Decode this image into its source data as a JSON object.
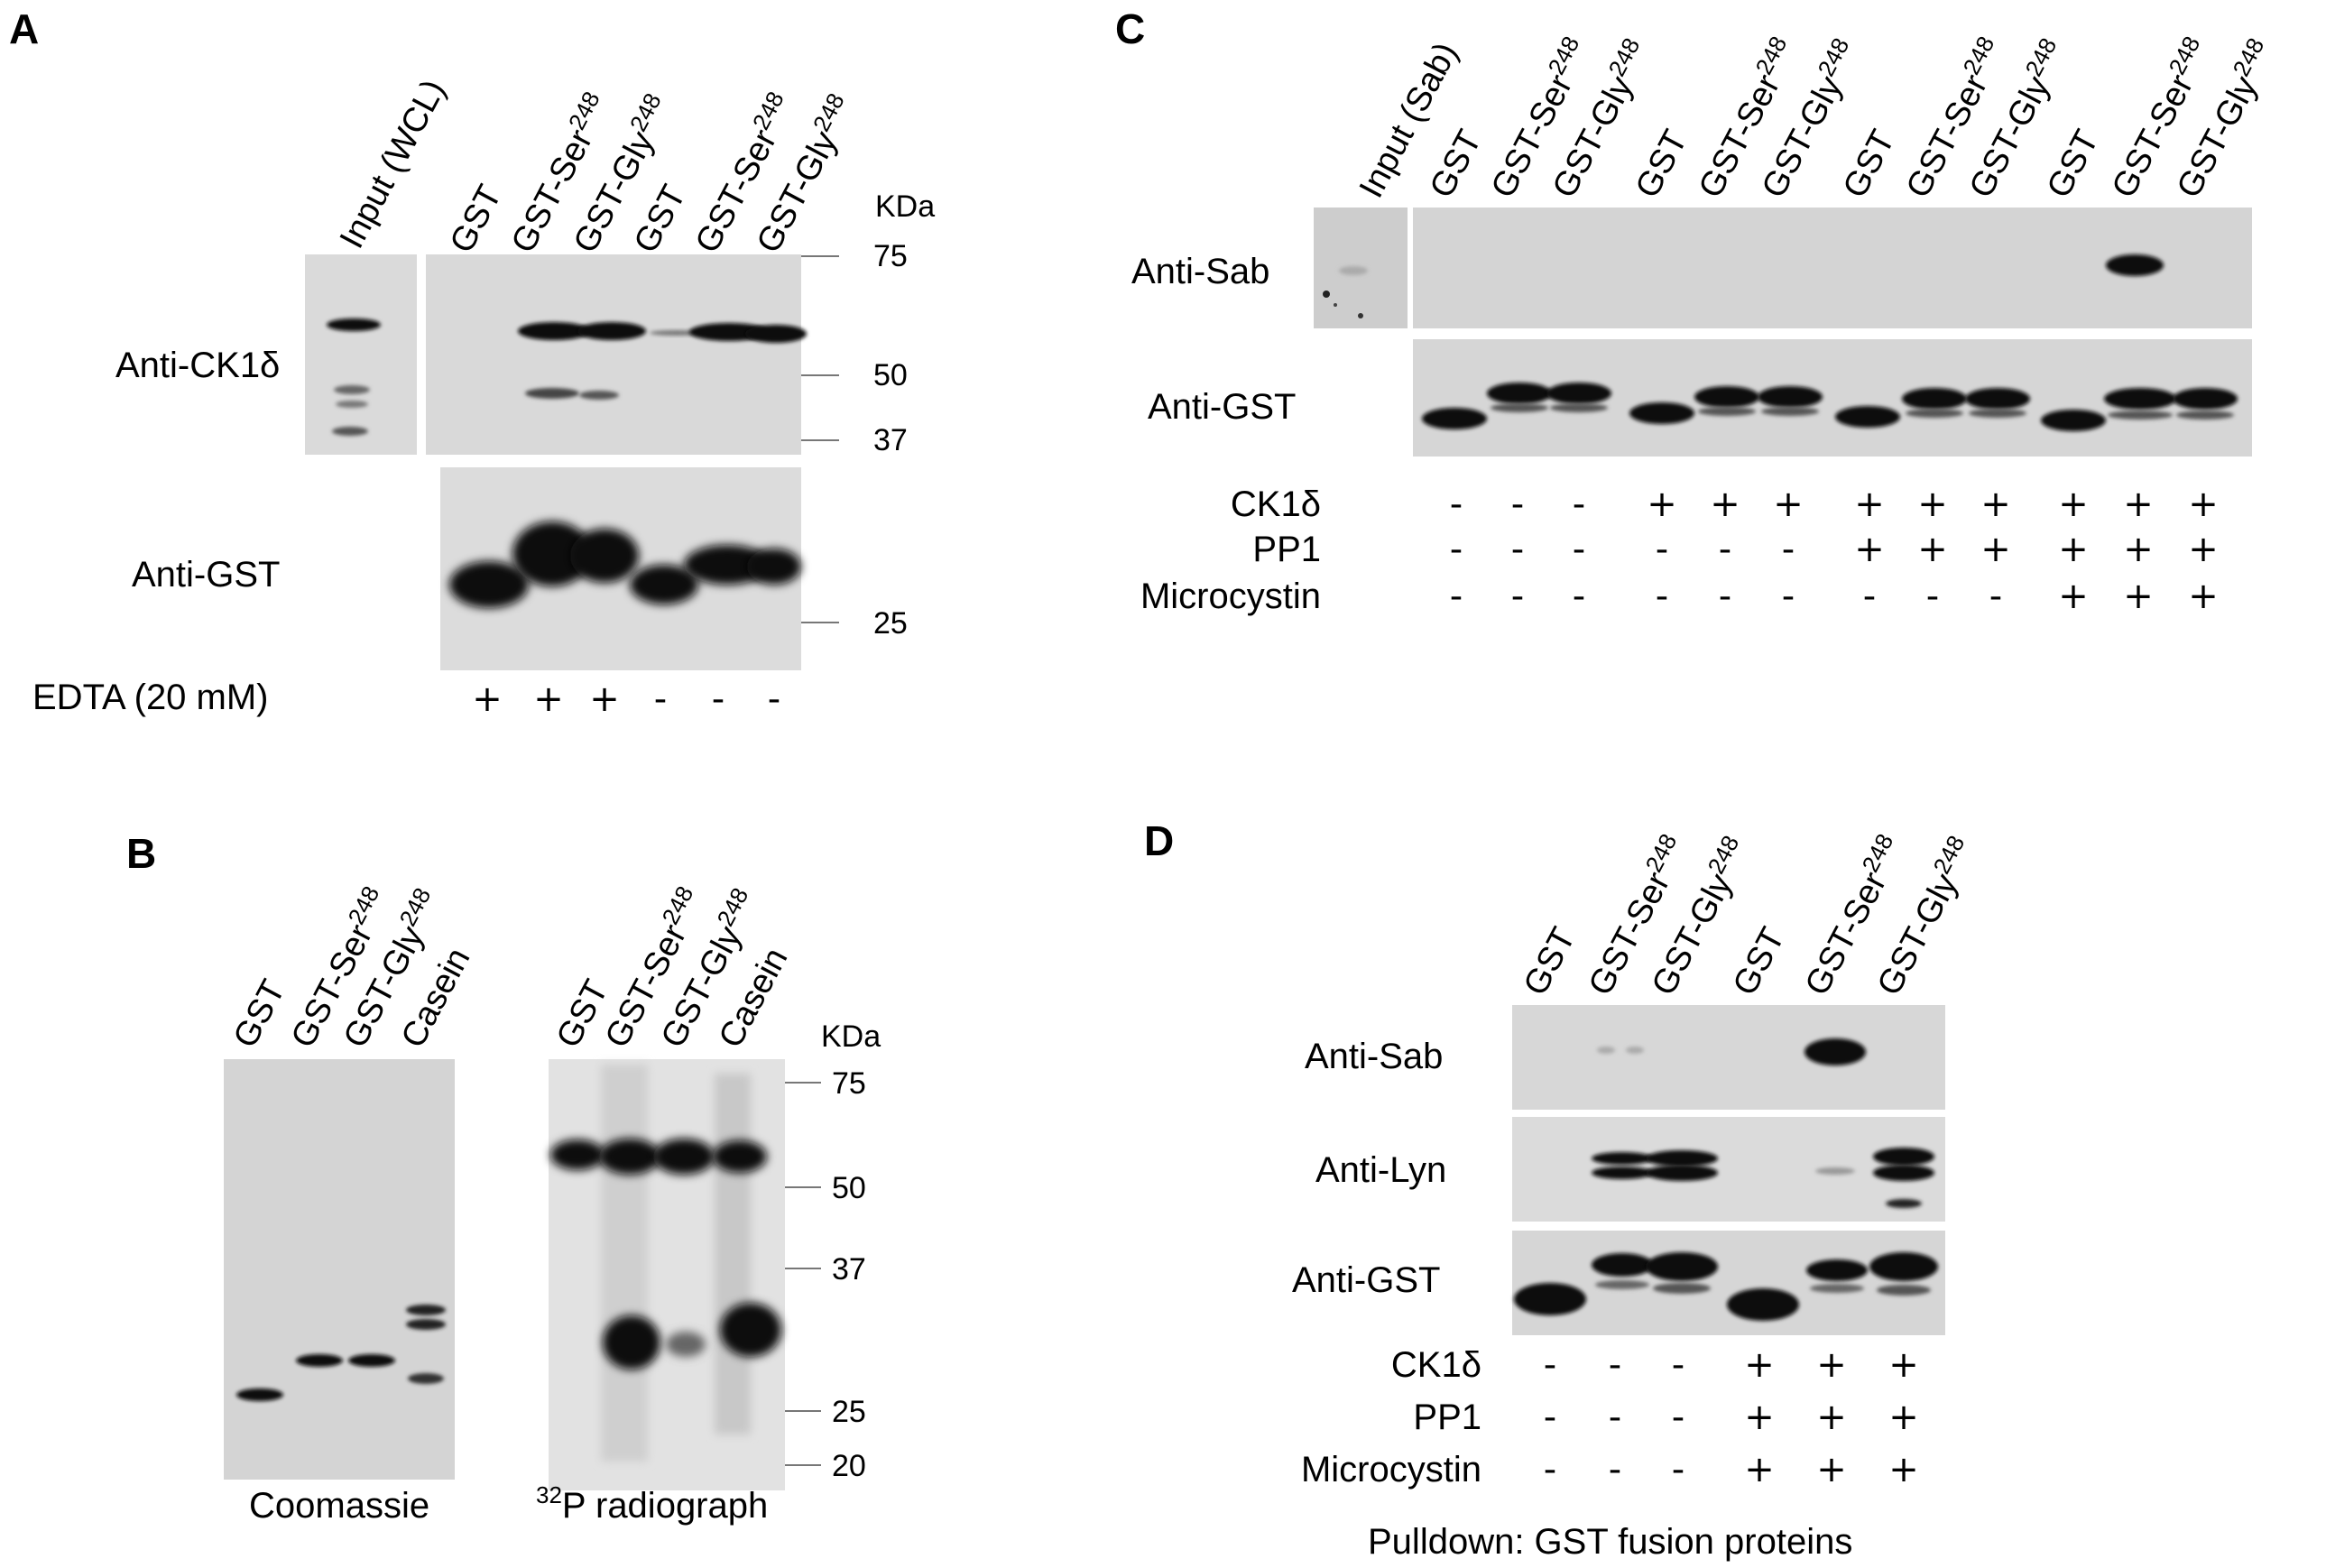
{
  "panels": {
    "a": {
      "label": "A",
      "lanes": [
        {
          "text": "Input (WCL)",
          "sup": ""
        },
        {
          "text": "GST",
          "sup": ""
        },
        {
          "text": "GST-Ser",
          "sup": "248"
        },
        {
          "text": "GST-Gly",
          "sup": "248"
        },
        {
          "text": "GST",
          "sup": ""
        },
        {
          "text": "GST-Ser",
          "sup": "248"
        },
        {
          "text": "GST-Gly",
          "sup": "248"
        }
      ],
      "mw_unit": "KDa",
      "mw_markers": [
        "75",
        "50",
        "37",
        "25"
      ],
      "rows": [
        "Anti-CK1δ",
        "Anti-GST"
      ],
      "treatment_label": "EDTA (20 mM)",
      "treatment_values": [
        "+",
        "+",
        "+",
        "-",
        "-",
        "-"
      ]
    },
    "b": {
      "label": "B",
      "coomassie_lanes": [
        "GST",
        "GST-Ser248",
        "GST-Gly248",
        "Casein"
      ],
      "radiograph_lanes": [
        "GST",
        "GST-Ser248",
        "GST-Gly248",
        "Casein"
      ],
      "mw_unit": "KDa",
      "mw_markers": [
        "75",
        "50",
        "37",
        "25",
        "20"
      ],
      "coomassie_caption": "Coomassie",
      "radiograph_caption_sup": "32",
      "radiograph_caption": "P radiograph"
    },
    "c": {
      "label": "C",
      "input_label": "Input (Sab)",
      "lanes": [
        "GST",
        "GST-Ser248",
        "GST-Gly248",
        "GST",
        "GST-Ser248",
        "GST-Gly248",
        "GST",
        "GST-Ser248",
        "GST-Gly248",
        "GST",
        "GST-Ser248",
        "GST-Gly248"
      ],
      "rows": [
        "Anti-Sab",
        "Anti-GST"
      ],
      "treatments": [
        {
          "label": "CK1δ",
          "values": [
            "-",
            "-",
            "-",
            "+",
            "+",
            "+",
            "+",
            "+",
            "+",
            "+",
            "+",
            "+"
          ]
        },
        {
          "label": "PP1",
          "values": [
            "-",
            "-",
            "-",
            "-",
            "-",
            "-",
            "+",
            "+",
            "+",
            "+",
            "+",
            "+"
          ]
        },
        {
          "label": "Microcystin",
          "values": [
            "-",
            "-",
            "-",
            "-",
            "-",
            "-",
            "-",
            "-",
            "-",
            "+",
            "+",
            "+"
          ]
        }
      ]
    },
    "d": {
      "label": "D",
      "lanes": [
        "GST",
        "GST-Ser248",
        "GST-Gly248",
        "GST",
        "GST-Ser248",
        "GST-Gly248"
      ],
      "rows": [
        "Anti-Sab",
        "Anti-Lyn",
        "Anti-GST"
      ],
      "treatments": [
        {
          "label": "CK1δ",
          "values": [
            "-",
            "-",
            "-",
            "+",
            "+",
            "+"
          ]
        },
        {
          "label": "PP1",
          "values": [
            "-",
            "-",
            "-",
            "+",
            "+",
            "+"
          ]
        },
        {
          "label": "Microcystin",
          "values": [
            "-",
            "-",
            "-",
            "+",
            "+",
            "+"
          ]
        }
      ],
      "caption": "Pulldown: GST fusion proteins"
    }
  }
}
